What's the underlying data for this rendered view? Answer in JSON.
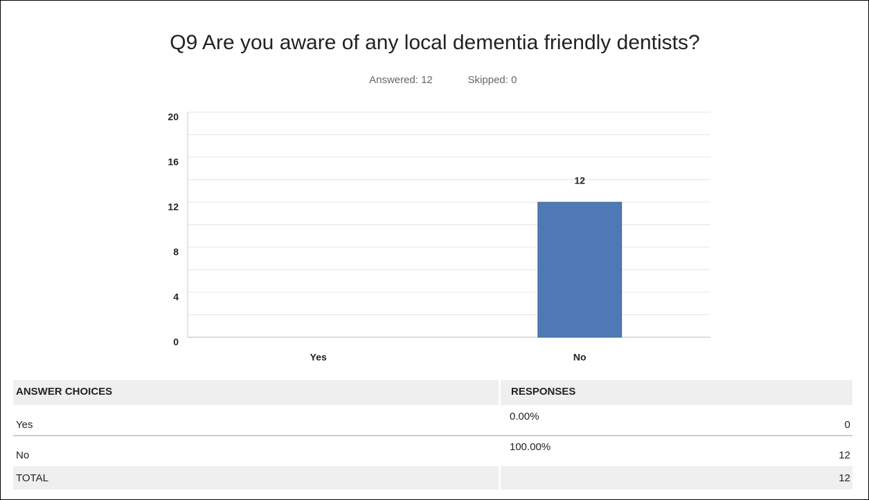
{
  "chart_data": {
    "type": "bar",
    "title": "Q9 Are you aware of any local dementia friendly dentists?",
    "answered": "Answered: 12",
    "skipped": "Skipped: 0",
    "categories": [
      "Yes",
      "No"
    ],
    "values": [
      0,
      12
    ],
    "value_labels": [
      null,
      "12"
    ],
    "color": "#4e79b4",
    "ylim": [
      0,
      20
    ],
    "yticks": [
      0,
      4,
      8,
      12,
      16,
      20
    ],
    "minor_yticks": [
      2,
      6,
      10,
      14,
      18
    ],
    "grid": true
  },
  "table": {
    "headers": [
      "ANSWER CHOICES",
      "RESPONSES"
    ],
    "rows": [
      [
        "Yes",
        "0.00%",
        "0"
      ],
      [
        "No",
        "100.00%",
        "12"
      ]
    ],
    "total": [
      "TOTAL",
      "12"
    ]
  }
}
